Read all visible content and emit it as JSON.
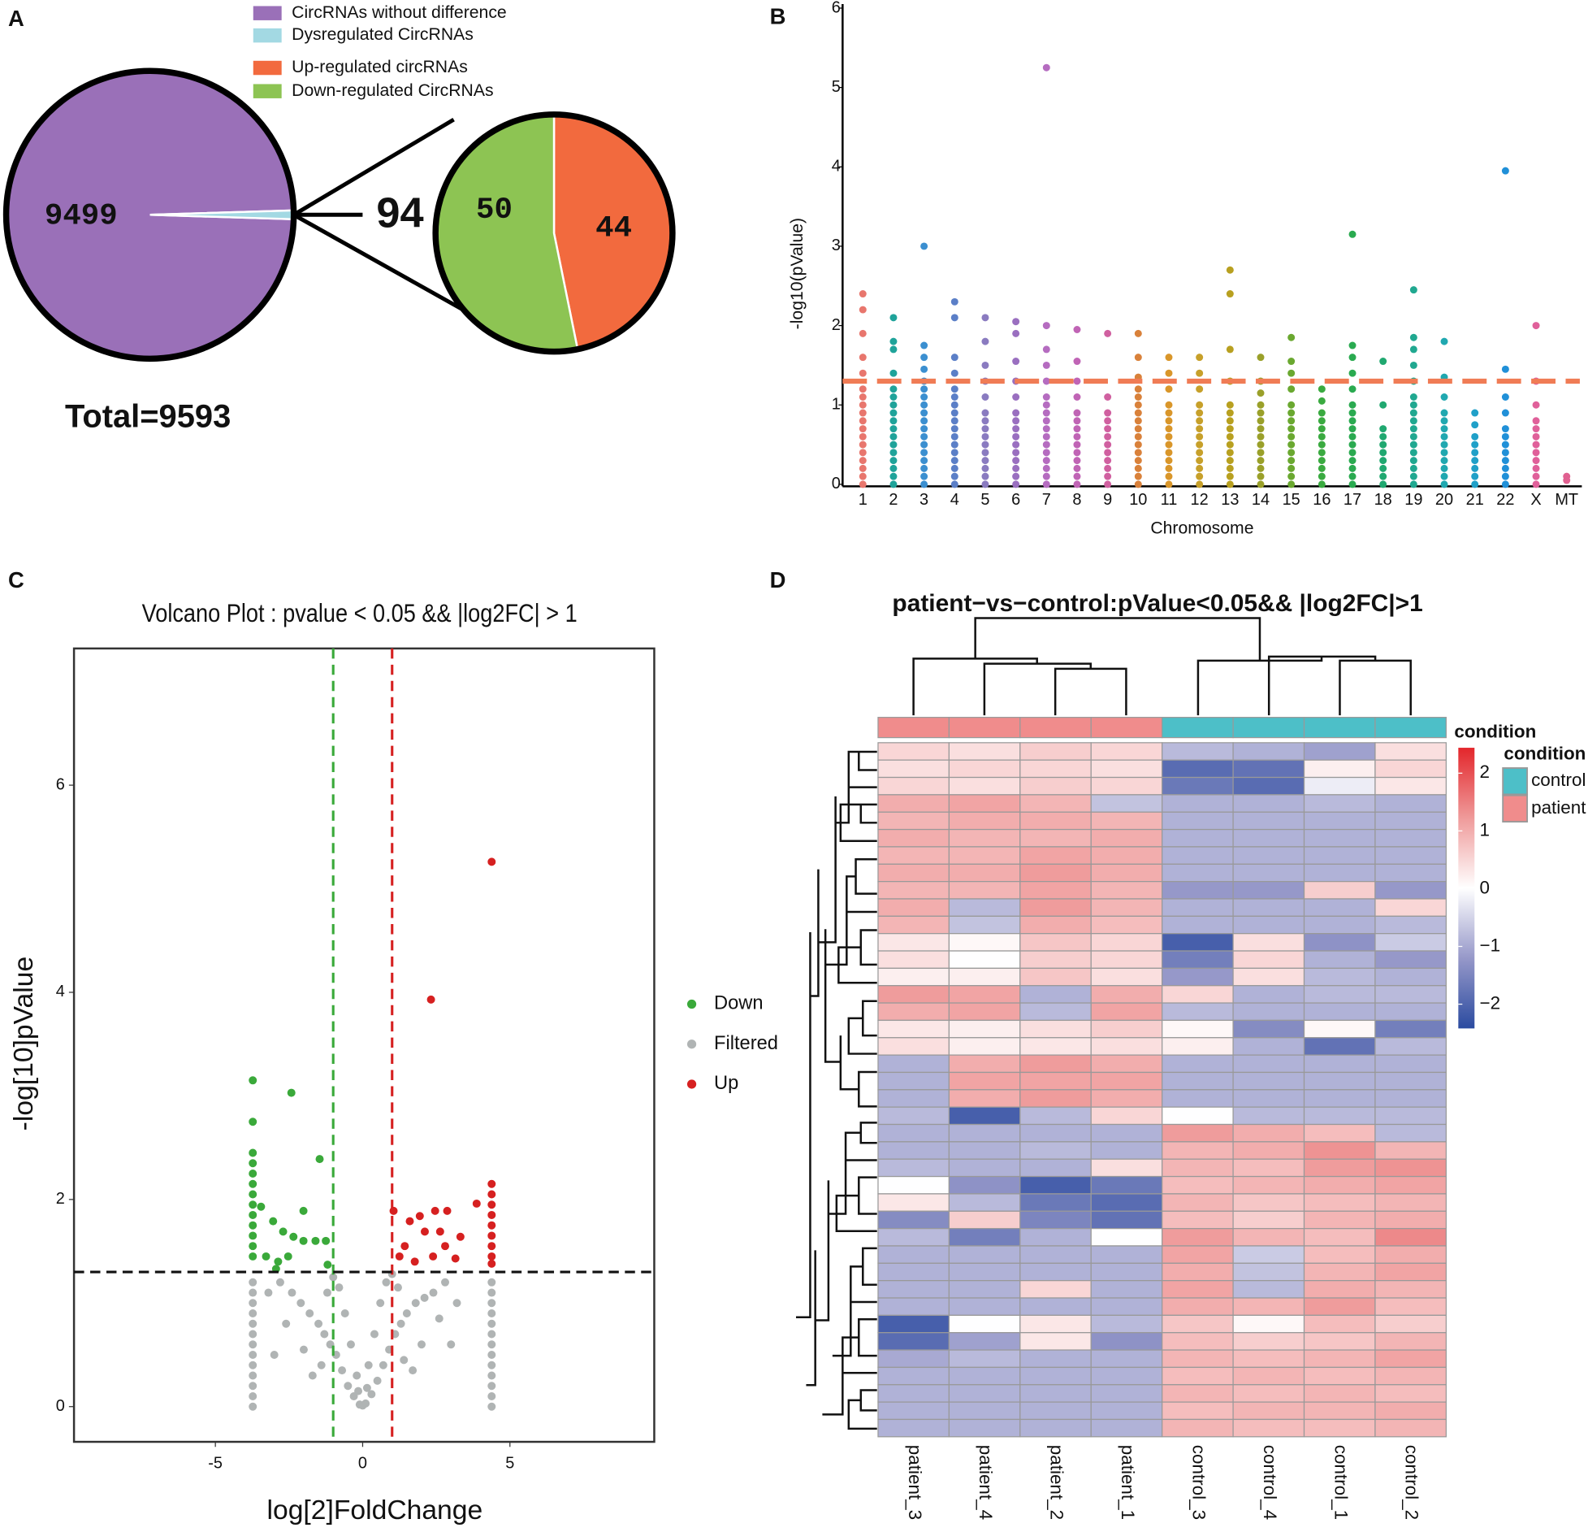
{
  "panel_labels": [
    "A",
    "B",
    "C",
    "D"
  ],
  "chart_data": [
    {
      "type": "pie",
      "annotation": "Total=9593",
      "series": [
        {
          "name": "CircRNAs without difference",
          "color": "#9a70b8",
          "value": 9499
        },
        {
          "name": "Dysregulated CircRNAs",
          "color": "#a3d9e3",
          "value": 94
        }
      ]
    },
    {
      "type": "pie",
      "series": [
        {
          "name": "Up-regulated circRNAs",
          "color": "#f26a3e",
          "value": 44
        },
        {
          "name": "Down-regulated CircRNAs",
          "color": "#8dc453",
          "value": 50
        }
      ]
    },
    {
      "type": "manhattan",
      "x_label": "Chromosome",
      "y_label": "-log10(pValue)",
      "ylim": [
        0,
        6
      ],
      "yticks": [
        0,
        1,
        2,
        3,
        4,
        5,
        6
      ],
      "threshold": 1.3,
      "threshold_color": "#f07c55",
      "categories": [
        "1",
        "2",
        "3",
        "4",
        "5",
        "6",
        "7",
        "8",
        "9",
        "10",
        "11",
        "12",
        "13",
        "14",
        "15",
        "16",
        "17",
        "18",
        "19",
        "20",
        "21",
        "22",
        "X",
        "MT"
      ],
      "colors": [
        "#e8766d",
        "#1fa39a",
        "#3b8fd0",
        "#5b7fc7",
        "#8a7bc0",
        "#9a6fc0",
        "#b56cc0",
        "#c064b5",
        "#d060a0",
        "#d9813a",
        "#d9962a",
        "#c7a02a",
        "#b8a020",
        "#9aa02a",
        "#6aa830",
        "#3aaa40",
        "#2aaa50",
        "#20a870",
        "#20a890",
        "#20a8b0",
        "#20a0c8",
        "#2090d8",
        "#e0609a",
        "#e06090"
      ],
      "values": [
        [
          0,
          0.1,
          0.2,
          0.3,
          0.4,
          0.5,
          0.6,
          0.7,
          0.8,
          0.9,
          1,
          1.1,
          1.2,
          1.4,
          1.6,
          1.9,
          2.2,
          2.4
        ],
        [
          0,
          0.1,
          0.2,
          0.3,
          0.4,
          0.5,
          0.6,
          0.7,
          0.8,
          0.9,
          1,
          1.1,
          1.2,
          1.4,
          1.7,
          1.8,
          2.1
        ],
        [
          0,
          0.1,
          0.2,
          0.3,
          0.4,
          0.5,
          0.6,
          0.7,
          0.8,
          0.9,
          1,
          1.1,
          1.2,
          1.3,
          1.45,
          1.6,
          1.75,
          3.0
        ],
        [
          0,
          0.1,
          0.2,
          0.3,
          0.4,
          0.5,
          0.6,
          0.7,
          0.8,
          0.9,
          1,
          1.1,
          1.2,
          1.4,
          1.6,
          2.1,
          2.3
        ],
        [
          0,
          0.1,
          0.2,
          0.3,
          0.4,
          0.5,
          0.6,
          0.7,
          0.8,
          0.9,
          1.1,
          1.3,
          1.5,
          1.8,
          2.1
        ],
        [
          0,
          0.1,
          0.2,
          0.3,
          0.4,
          0.5,
          0.6,
          0.7,
          0.8,
          0.9,
          1.1,
          1.3,
          1.55,
          1.9,
          2.05
        ],
        [
          0,
          0.1,
          0.2,
          0.3,
          0.4,
          0.5,
          0.6,
          0.7,
          0.8,
          0.9,
          1,
          1.1,
          1.3,
          1.5,
          1.7,
          2.0,
          5.25
        ],
        [
          0,
          0.1,
          0.2,
          0.3,
          0.4,
          0.5,
          0.6,
          0.7,
          0.8,
          0.9,
          1.1,
          1.3,
          1.55,
          1.95
        ],
        [
          0,
          0.1,
          0.2,
          0.3,
          0.4,
          0.5,
          0.6,
          0.7,
          0.8,
          0.9,
          1.1,
          1.9
        ],
        [
          0,
          0.1,
          0.2,
          0.3,
          0.4,
          0.5,
          0.6,
          0.7,
          0.8,
          0.9,
          1,
          1.1,
          1.2,
          1.35,
          1.6,
          1.9
        ],
        [
          0,
          0.1,
          0.2,
          0.3,
          0.4,
          0.5,
          0.6,
          0.7,
          0.8,
          0.9,
          1,
          1.2,
          1.4,
          1.6
        ],
        [
          0,
          0.1,
          0.2,
          0.3,
          0.4,
          0.5,
          0.6,
          0.7,
          0.8,
          0.9,
          1,
          1.2,
          1.4,
          1.6
        ],
        [
          0,
          0.1,
          0.2,
          0.3,
          0.4,
          0.5,
          0.6,
          0.7,
          0.8,
          0.9,
          1,
          1.3,
          1.7,
          2.4,
          2.7
        ],
        [
          0,
          0.1,
          0.2,
          0.3,
          0.4,
          0.5,
          0.6,
          0.7,
          0.8,
          0.9,
          1,
          1.15,
          1.3,
          1.6
        ],
        [
          0,
          0.1,
          0.2,
          0.3,
          0.4,
          0.5,
          0.6,
          0.7,
          0.8,
          0.9,
          1,
          1.2,
          1.4,
          1.55,
          1.85
        ],
        [
          0,
          0.1,
          0.2,
          0.3,
          0.4,
          0.5,
          0.6,
          0.7,
          0.8,
          0.9,
          1.05,
          1.2
        ],
        [
          0,
          0.1,
          0.2,
          0.3,
          0.4,
          0.5,
          0.6,
          0.7,
          0.8,
          0.9,
          1,
          1.2,
          1.4,
          1.6,
          1.75,
          3.15
        ],
        [
          0,
          0.1,
          0.2,
          0.3,
          0.4,
          0.5,
          0.6,
          0.7,
          1.0,
          1.55
        ],
        [
          0,
          0.1,
          0.2,
          0.3,
          0.4,
          0.5,
          0.6,
          0.7,
          0.8,
          0.9,
          1,
          1.1,
          1.3,
          1.5,
          1.7,
          1.85,
          2.45
        ],
        [
          0,
          0.1,
          0.2,
          0.3,
          0.4,
          0.5,
          0.6,
          0.7,
          0.8,
          0.9,
          1.1,
          1.35,
          1.8
        ],
        [
          0,
          0.1,
          0.2,
          0.3,
          0.4,
          0.5,
          0.6,
          0.75,
          0.9
        ],
        [
          0,
          0.1,
          0.2,
          0.3,
          0.4,
          0.5,
          0.6,
          0.7,
          0.9,
          1.1,
          1.45,
          3.95
        ],
        [
          0,
          0.1,
          0.2,
          0.3,
          0.4,
          0.5,
          0.6,
          0.7,
          0.8,
          1.0,
          1.3,
          2.0
        ],
        [
          0.05,
          0.1
        ]
      ]
    },
    {
      "type": "volcano",
      "title": "Volcano Plot : pvalue < 0.05 && |log2FC| > 1",
      "x_label": "log[2]FoldChange",
      "y_label": "-log[10]pValue",
      "xlim": [
        -9.8,
        9.9
      ],
      "xticks": [
        -5,
        0,
        5
      ],
      "ylim": [
        -0.34,
        7.32
      ],
      "yticks": [
        0,
        2,
        4,
        6
      ],
      "hline": 1.3,
      "vlines": [
        -1,
        1
      ],
      "vline_colors": [
        "#3aa93a",
        "#d62020"
      ],
      "series": [
        {
          "name": "Down",
          "color": "#3aa93a",
          "x": [
            -3.73,
            -3.73,
            -3.73,
            -3.73,
            -3.73,
            -3.73,
            -3.73,
            -3.73,
            -3.73,
            -3.73,
            -3.73,
            -3.73,
            -3.73,
            -2.42,
            -1.46,
            -3.45,
            -3.04,
            -2.7,
            -2.35,
            -2.01,
            -3.28,
            -2.87,
            -2.53,
            -1.6,
            -1.25,
            -1.19,
            -2.94,
            -2.01
          ],
          "y": [
            3.15,
            2.75,
            2.45,
            2.35,
            2.25,
            2.15,
            2.05,
            1.95,
            1.85,
            1.75,
            1.65,
            1.55,
            1.45,
            3.03,
            2.39,
            1.93,
            1.79,
            1.69,
            1.64,
            1.6,
            1.45,
            1.4,
            1.45,
            1.6,
            1.6,
            1.37,
            1.33,
            1.89
          ]
        },
        {
          "name": "Filtered",
          "color": "#b0b4b4",
          "x": [
            -3.73,
            -3.73,
            -3.73,
            -3.73,
            -3.73,
            -3.73,
            -3.73,
            -3.73,
            -3.73,
            -3.73,
            -3.73,
            -3.73,
            -3.73,
            4.38,
            4.38,
            4.38,
            4.38,
            4.38,
            4.38,
            4.38,
            4.38,
            4.38,
            4.38,
            4.38,
            4.38,
            4.38,
            -0.1,
            0.1,
            -0.3,
            0.3,
            -0.5,
            0.5,
            -0.7,
            0.7,
            -0.9,
            0.9,
            -1.1,
            1.1,
            -1.3,
            1.3,
            -1.5,
            1.5,
            -1.8,
            1.8,
            -2.1,
            2.1,
            -2.4,
            2.4,
            -2.8,
            2.8,
            -0.2,
            0.2,
            -0.4,
            0.4,
            -0.6,
            0.6,
            -0.8,
            0.8,
            -1.0,
            1.0,
            -1.4,
            1.4,
            -2.0,
            2.0,
            -2.6,
            2.6,
            -3.2,
            3.2,
            -1.7,
            1.7,
            -1.2,
            1.2,
            0,
            -0.15,
            0.15,
            -3.0,
            3.0
          ],
          "y": [
            0,
            0.1,
            0.2,
            0.3,
            0.4,
            0.5,
            0.6,
            0.7,
            0.8,
            0.9,
            1,
            1.1,
            1.2,
            0,
            0.1,
            0.2,
            0.3,
            0.4,
            0.5,
            0.6,
            0.7,
            0.8,
            0.9,
            1,
            1.1,
            1.2,
            0.02,
            0.03,
            0.1,
            0.12,
            0.2,
            0.25,
            0.35,
            0.4,
            0.5,
            0.55,
            0.6,
            0.7,
            0.7,
            0.8,
            0.8,
            0.9,
            0.9,
            1.0,
            1.0,
            1.05,
            1.1,
            1.1,
            1.2,
            1.2,
            0.3,
            0.4,
            0.6,
            0.7,
            0.9,
            1.0,
            1.15,
            1.2,
            1.25,
            1.28,
            0.4,
            0.45,
            0.55,
            0.6,
            0.8,
            0.85,
            1.1,
            1.0,
            0.3,
            0.35,
            1.1,
            1.15,
            0.01,
            0.15,
            0.18,
            0.5,
            0.6
          ]
        },
        {
          "name": "Up",
          "color": "#d62020",
          "x": [
            4.38,
            4.38,
            4.38,
            4.38,
            4.38,
            4.38,
            4.38,
            4.38,
            4.38,
            4.38,
            2.32,
            3.87,
            1.05,
            1.6,
            1.94,
            2.46,
            2.87,
            2.11,
            2.63,
            3.32,
            1.25,
            1.77,
            2.39,
            3.15,
            1.43,
            2.8
          ],
          "y": [
            2.15,
            2.05,
            1.95,
            1.85,
            1.75,
            1.65,
            1.55,
            1.45,
            1.38,
            5.26,
            3.93,
            1.96,
            1.89,
            1.79,
            1.84,
            1.89,
            1.89,
            1.69,
            1.69,
            1.64,
            1.45,
            1.4,
            1.45,
            1.43,
            1.55,
            1.55
          ]
        }
      ]
    },
    {
      "type": "heatmap",
      "title": "patient−vs−control:pValue<0.05&& |log2FC|>1",
      "columns": [
        "patient_3",
        "patient_4",
        "patient_2",
        "patient_1",
        "control_3",
        "control_4",
        "control_1",
        "control_2"
      ],
      "conditions": [
        "patient",
        "patient",
        "patient",
        "patient",
        "control",
        "control",
        "control",
        "control"
      ],
      "colorbar_title": "condition",
      "legend_title": "condition",
      "legend": [
        {
          "name": "control",
          "color": "#4dbfc8"
        },
        {
          "name": "patient",
          "color": "#f08c8c"
        }
      ],
      "clim": [
        -2.42,
        2.44
      ],
      "cticks": [
        2,
        1,
        0,
        {
          "value": -1,
          "label": "−1"
        },
        {
          "value": -2,
          "label": "−2"
        }
      ],
      "colorscale": [
        "#2b4ba0",
        "#9698c9",
        "#ffffff",
        "#ef9a9a",
        "#e3262b"
      ],
      "values": [
        [
          0.5,
          0.4,
          0.6,
          0.5,
          -0.8,
          -0.9,
          -1.1,
          0.4
        ],
        [
          0.4,
          0.5,
          0.5,
          0.4,
          -1.9,
          -1.8,
          0.2,
          0.5
        ],
        [
          0.5,
          0.4,
          0.6,
          0.5,
          -1.7,
          -1.9,
          -0.2,
          0.3
        ],
        [
          1.0,
          1.1,
          0.9,
          -0.7,
          -0.9,
          -0.9,
          -0.8,
          -0.9
        ],
        [
          0.9,
          1.0,
          1.0,
          0.9,
          -0.9,
          -0.9,
          -0.9,
          -0.9
        ],
        [
          1.0,
          0.9,
          0.9,
          1.0,
          -0.9,
          -0.9,
          -0.9,
          -0.9
        ],
        [
          0.9,
          0.9,
          1.1,
          1.0,
          -0.9,
          -0.9,
          -0.9,
          -0.9
        ],
        [
          1.0,
          1.0,
          1.2,
          1.0,
          -0.9,
          -0.9,
          -0.9,
          -0.9
        ],
        [
          0.9,
          0.9,
          1.1,
          0.9,
          -1.2,
          -1.2,
          0.6,
          -1.2
        ],
        [
          1.0,
          -0.8,
          1.2,
          0.9,
          -0.9,
          -0.9,
          -0.9,
          0.5
        ],
        [
          0.9,
          -0.7,
          1.0,
          0.8,
          -0.9,
          -0.9,
          -0.9,
          -0.8
        ],
        [
          0.3,
          0.1,
          0.7,
          0.5,
          -2.1,
          0.4,
          -1.3,
          -0.6
        ],
        [
          0.4,
          0.0,
          0.6,
          0.5,
          -1.6,
          0.5,
          -0.9,
          -1.2
        ],
        [
          0.2,
          0.2,
          0.7,
          0.4,
          -1.2,
          0.4,
          -0.8,
          -0.9
        ],
        [
          1.2,
          1.1,
          -0.9,
          1.0,
          0.5,
          -0.9,
          -0.8,
          -0.8
        ],
        [
          1.0,
          1.1,
          -0.8,
          1.1,
          -0.8,
          -0.9,
          -0.9,
          -0.9
        ],
        [
          0.3,
          0.2,
          0.4,
          0.6,
          0.1,
          -1.4,
          0.1,
          -1.6
        ],
        [
          0.4,
          0.2,
          0.3,
          0.4,
          0.2,
          -0.9,
          -1.8,
          -0.8
        ],
        [
          -0.9,
          1.0,
          1.2,
          1.0,
          -0.9,
          -0.9,
          -0.9,
          -0.9
        ],
        [
          -0.9,
          1.1,
          1.1,
          1.1,
          -0.9,
          -0.9,
          -0.9,
          -0.9
        ],
        [
          -0.9,
          1.0,
          1.2,
          1.0,
          -0.9,
          -0.9,
          -0.9,
          -0.9
        ],
        [
          -0.8,
          -2.1,
          -0.8,
          0.5,
          0.0,
          -0.8,
          -0.8,
          -0.8
        ],
        [
          -0.9,
          -0.9,
          -0.9,
          -0.9,
          1.2,
          1.0,
          0.8,
          -0.8
        ],
        [
          -0.9,
          -0.9,
          -0.8,
          -0.9,
          0.9,
          1.0,
          1.3,
          0.9
        ],
        [
          -0.8,
          -0.9,
          -0.9,
          0.4,
          0.9,
          0.8,
          1.2,
          1.3
        ],
        [
          0.0,
          -1.3,
          -2.1,
          -1.7,
          0.8,
          0.9,
          1.0,
          1.1
        ],
        [
          0.3,
          -0.8,
          -1.7,
          -1.9,
          0.9,
          0.7,
          0.8,
          0.9
        ],
        [
          -1.4,
          0.6,
          -1.5,
          -1.8,
          0.8,
          0.6,
          0.9,
          1.0
        ],
        [
          -0.8,
          -1.6,
          -0.9,
          0.0,
          1.2,
          0.9,
          0.8,
          1.4
        ],
        [
          -0.9,
          -0.9,
          -0.9,
          -0.9,
          1.1,
          -0.6,
          0.8,
          1.0
        ],
        [
          -0.9,
          -0.9,
          -0.9,
          -0.9,
          1.0,
          -0.7,
          0.9,
          1.1
        ],
        [
          -0.9,
          -0.9,
          0.5,
          -0.9,
          1.1,
          -0.8,
          1.0,
          0.9
        ],
        [
          -0.9,
          -0.9,
          -0.9,
          -0.9,
          1.0,
          0.9,
          1.2,
          0.8
        ],
        [
          -2.1,
          0.0,
          0.3,
          -0.8,
          0.7,
          0.1,
          0.8,
          0.6
        ],
        [
          -1.9,
          -1.1,
          0.3,
          -1.3,
          0.8,
          0.6,
          0.7,
          0.9
        ],
        [
          -1.0,
          -0.8,
          -0.9,
          -0.9,
          0.9,
          0.8,
          0.9,
          1.1
        ],
        [
          -0.9,
          -0.9,
          -0.9,
          -0.9,
          0.8,
          0.9,
          0.8,
          0.9
        ],
        [
          -0.9,
          -0.9,
          -0.9,
          -0.9,
          0.9,
          0.8,
          0.9,
          0.8
        ],
        [
          -0.9,
          -0.9,
          -0.9,
          -0.9,
          0.8,
          0.9,
          0.9,
          1.0
        ],
        [
          -0.9,
          -0.9,
          -0.9,
          -0.9,
          0.9,
          0.8,
          0.8,
          0.9
        ]
      ]
    }
  ]
}
